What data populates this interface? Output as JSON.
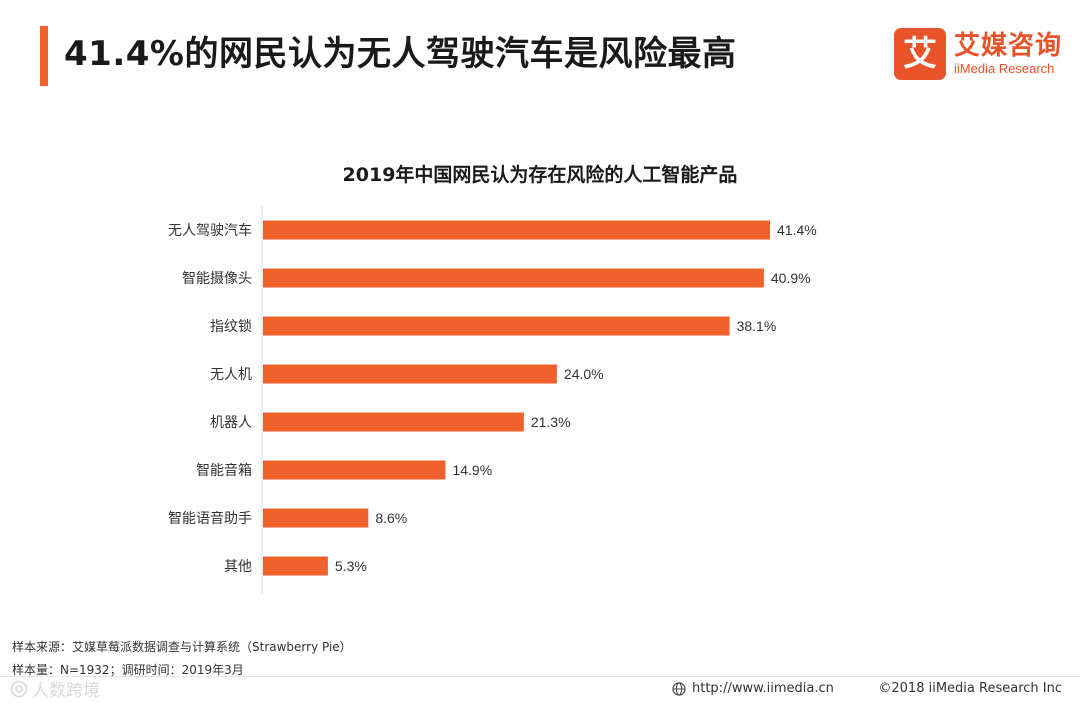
{
  "header": {
    "title": "41.4%的网民认为无人驾驶汽车是风险最高",
    "accent_color": "#f0622d"
  },
  "brand": {
    "logo_char": "艾",
    "name_cn": "艾媒咨询",
    "name_en": "iiMedia Research",
    "color": "#e8532a"
  },
  "chart_data": {
    "type": "bar",
    "orientation": "horizontal",
    "title": "2019年中国网民认为存在风险的人工智能产品",
    "categories": [
      "无人驾驶汽车",
      "智能摄像头",
      "指纹锁",
      "无人机",
      "机器人",
      "智能音箱",
      "智能语音助手",
      "其他"
    ],
    "values": [
      41.4,
      40.9,
      38.1,
      24.0,
      21.3,
      14.9,
      8.6,
      5.3
    ],
    "value_labels": [
      "41.4%",
      "40.9%",
      "38.1%",
      "24.0%",
      "21.3%",
      "14.9%",
      "8.6%",
      "5.3%"
    ],
    "unit": "%",
    "xlabel": "",
    "ylabel": "",
    "xlim": [
      0,
      41.4
    ],
    "grid": false,
    "bar_color": "#f0622d"
  },
  "footnotes": {
    "source": "样本来源：艾媒草莓派数据调查与计算系统（Strawberry Pie）",
    "sample": "样本量：N=1932；调研时间：2019年3月"
  },
  "footer": {
    "url": "http://www.iimedia.cn",
    "copyright": "©2018  iiMedia Research  Inc"
  },
  "watermark": {
    "text": "人数跨境"
  }
}
